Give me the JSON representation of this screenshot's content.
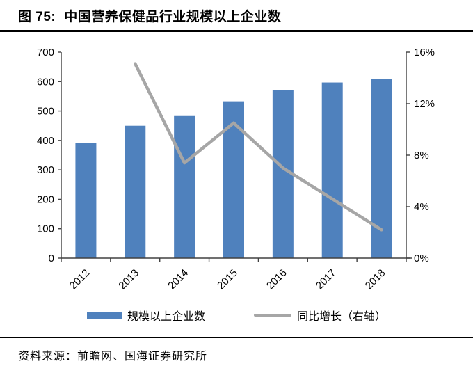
{
  "figure": {
    "prefix": "图 75:",
    "title": "中国营养保健品行业规模以上企业数"
  },
  "source": {
    "text": "资料来源：前瞻网、国海证券研究所"
  },
  "colors": {
    "bar": "#4F81BD",
    "line": "#A6A6A6",
    "axis": "#404040",
    "text": "#000000",
    "rule": "#000000"
  },
  "chart_data": {
    "type": "bar+line",
    "categories": [
      "2012",
      "2013",
      "2014",
      "2015",
      "2016",
      "2017",
      "2018"
    ],
    "series": [
      {
        "name": "规模以上企业数",
        "type": "bar",
        "axis": "left",
        "color": "#4F81BD",
        "values": [
          391,
          450,
          483,
          533,
          571,
          597,
          610
        ]
      },
      {
        "name": "同比增长（右轴）",
        "type": "line",
        "axis": "right",
        "color": "#A6A6A6",
        "values": [
          null,
          15.1,
          7.4,
          10.5,
          7.0,
          4.6,
          2.2
        ]
      }
    ],
    "left_axis": {
      "min": 0,
      "max": 700,
      "step": 100,
      "tick_labels": [
        "0",
        "100",
        "200",
        "300",
        "400",
        "500",
        "600",
        "700"
      ]
    },
    "right_axis": {
      "min": 0,
      "max": 16,
      "step": 4,
      "tick_labels": [
        "0%",
        "4%",
        "8%",
        "12%",
        "16%"
      ]
    },
    "grid": false,
    "legend_position": "bottom",
    "x_label_rotation": -45
  }
}
